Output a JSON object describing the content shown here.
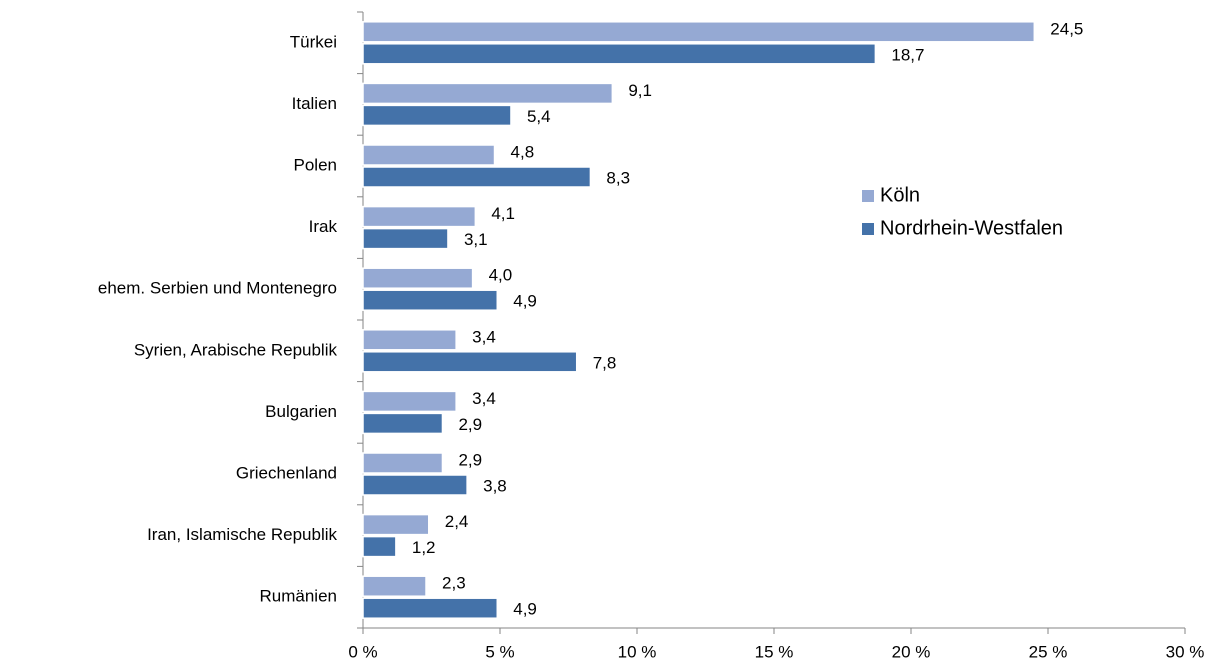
{
  "chart_data": {
    "type": "barh",
    "categories": [
      "Türkei",
      "Italien",
      "Polen",
      "Irak",
      "ehem. Serbien und Montenegro",
      "Syrien, Arabische Republik",
      "Bulgarien",
      "Griechenland",
      "Iran, Islamische Republik",
      "Rumänien"
    ],
    "series": [
      {
        "name": "Köln",
        "color": "#95a9d3",
        "values": [
          24.5,
          9.1,
          4.8,
          4.1,
          4.0,
          3.4,
          3.4,
          2.9,
          2.4,
          2.3
        ],
        "value_labels": [
          "24,5",
          "9,1",
          "4,8",
          "4,1",
          "4,0",
          "3,4",
          "3,4",
          "2,9",
          "2,4",
          "2,3"
        ]
      },
      {
        "name": "Nordrhein-Westfalen",
        "color": "#4472a9",
        "values": [
          18.7,
          5.4,
          8.3,
          3.1,
          4.9,
          7.8,
          2.9,
          3.8,
          1.2,
          4.9
        ],
        "value_labels": [
          "18,7",
          "5,4",
          "8,3",
          "3,1",
          "4,9",
          "7,8",
          "2,9",
          "3,8",
          "1,2",
          "4,9"
        ]
      }
    ],
    "xlim": [
      0,
      30
    ],
    "xticks": [
      {
        "value": 0,
        "label": "0 %"
      },
      {
        "value": 5,
        "label": "5 %"
      },
      {
        "value": 10,
        "label": "10 %"
      },
      {
        "value": 15,
        "label": "15 %"
      },
      {
        "value": 20,
        "label": "20 %"
      },
      {
        "value": 25,
        "label": "25 %"
      },
      {
        "value": 30,
        "label": "30 %"
      }
    ],
    "legend": "right"
  }
}
